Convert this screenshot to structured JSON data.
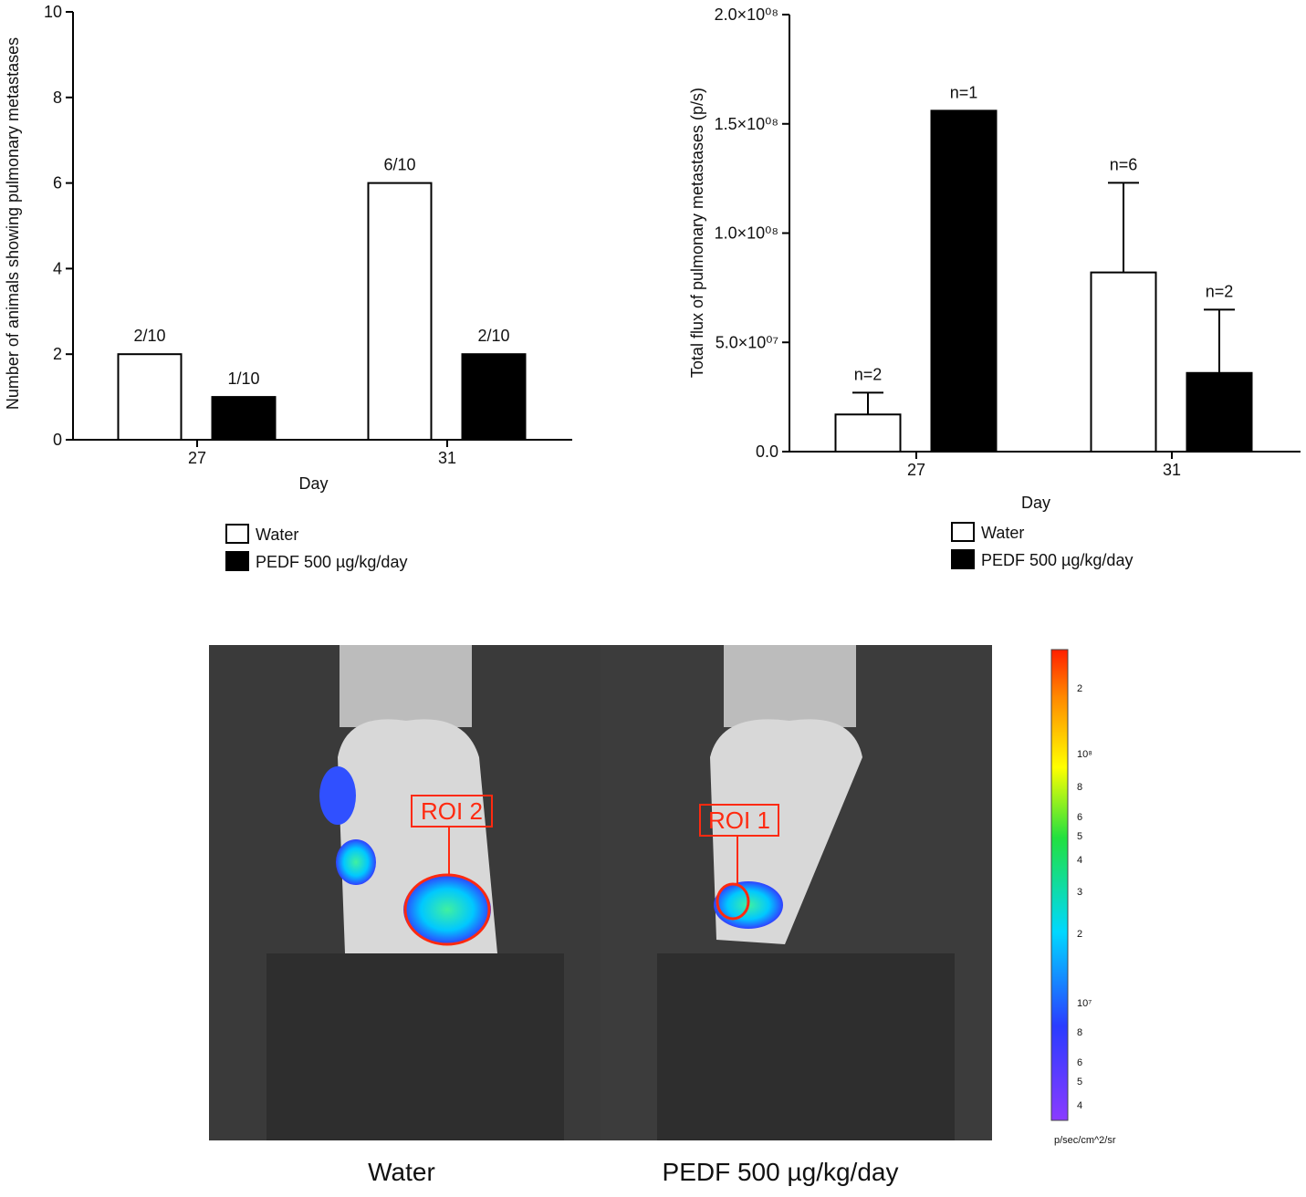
{
  "chart_data": [
    {
      "type": "bar",
      "y_label": "Number of animals showing pulmonary metastases",
      "x_label": "Day",
      "categories": [
        "27",
        "31"
      ],
      "series": [
        {
          "name": "Water",
          "color": "#ffffff",
          "values": [
            2,
            6
          ],
          "annotations": [
            "2/10",
            "6/10"
          ]
        },
        {
          "name": "PEDF 500 µg/kg/day",
          "color": "#000000",
          "values": [
            1,
            2
          ],
          "annotations": [
            "1/10",
            "2/10"
          ]
        }
      ],
      "ylim": [
        0,
        10
      ],
      "yticks": [
        0,
        2,
        4,
        6,
        8,
        10
      ]
    },
    {
      "type": "bar",
      "y_label": "Total flux of pulmonary metastases (p/s)",
      "x_label": "Day",
      "categories": [
        "27",
        "31"
      ],
      "series": [
        {
          "name": "Water",
          "color": "#ffffff",
          "values": [
            17000000,
            82000000
          ],
          "errors": [
            10000000,
            41000000
          ],
          "annotations": [
            "n=2",
            "n=6"
          ]
        },
        {
          "name": "PEDF 500 µg/kg/day",
          "color": "#000000",
          "values": [
            156000000,
            36000000
          ],
          "errors": [
            null,
            29000000
          ],
          "annotations": [
            "n=1",
            "n=2"
          ]
        }
      ],
      "ylim": [
        0,
        200000000
      ],
      "yticks": [
        {
          "value": 0,
          "label": "0.0"
        },
        {
          "value": 50000000,
          "label": "5.0×10⁰⁷"
        },
        {
          "value": 100000000,
          "label": "1.0×10⁰⁸"
        },
        {
          "value": 150000000,
          "label": "1.5×10⁰⁸"
        },
        {
          "value": 200000000,
          "label": "2.0×10⁰⁸"
        }
      ]
    }
  ],
  "image_panel": {
    "left_caption": "Water",
    "right_caption": "PEDF 500 µg/kg/day",
    "left_roi": "ROI 2",
    "right_roi": "ROI 1",
    "colorbar_ticks": [
      "2",
      "10⁸",
      "8",
      "6",
      "5",
      "4",
      "3",
      "2",
      "10⁷",
      "8",
      "6",
      "5",
      "4"
    ],
    "colorbar_unit": "p/sec/cm^2/sr"
  }
}
